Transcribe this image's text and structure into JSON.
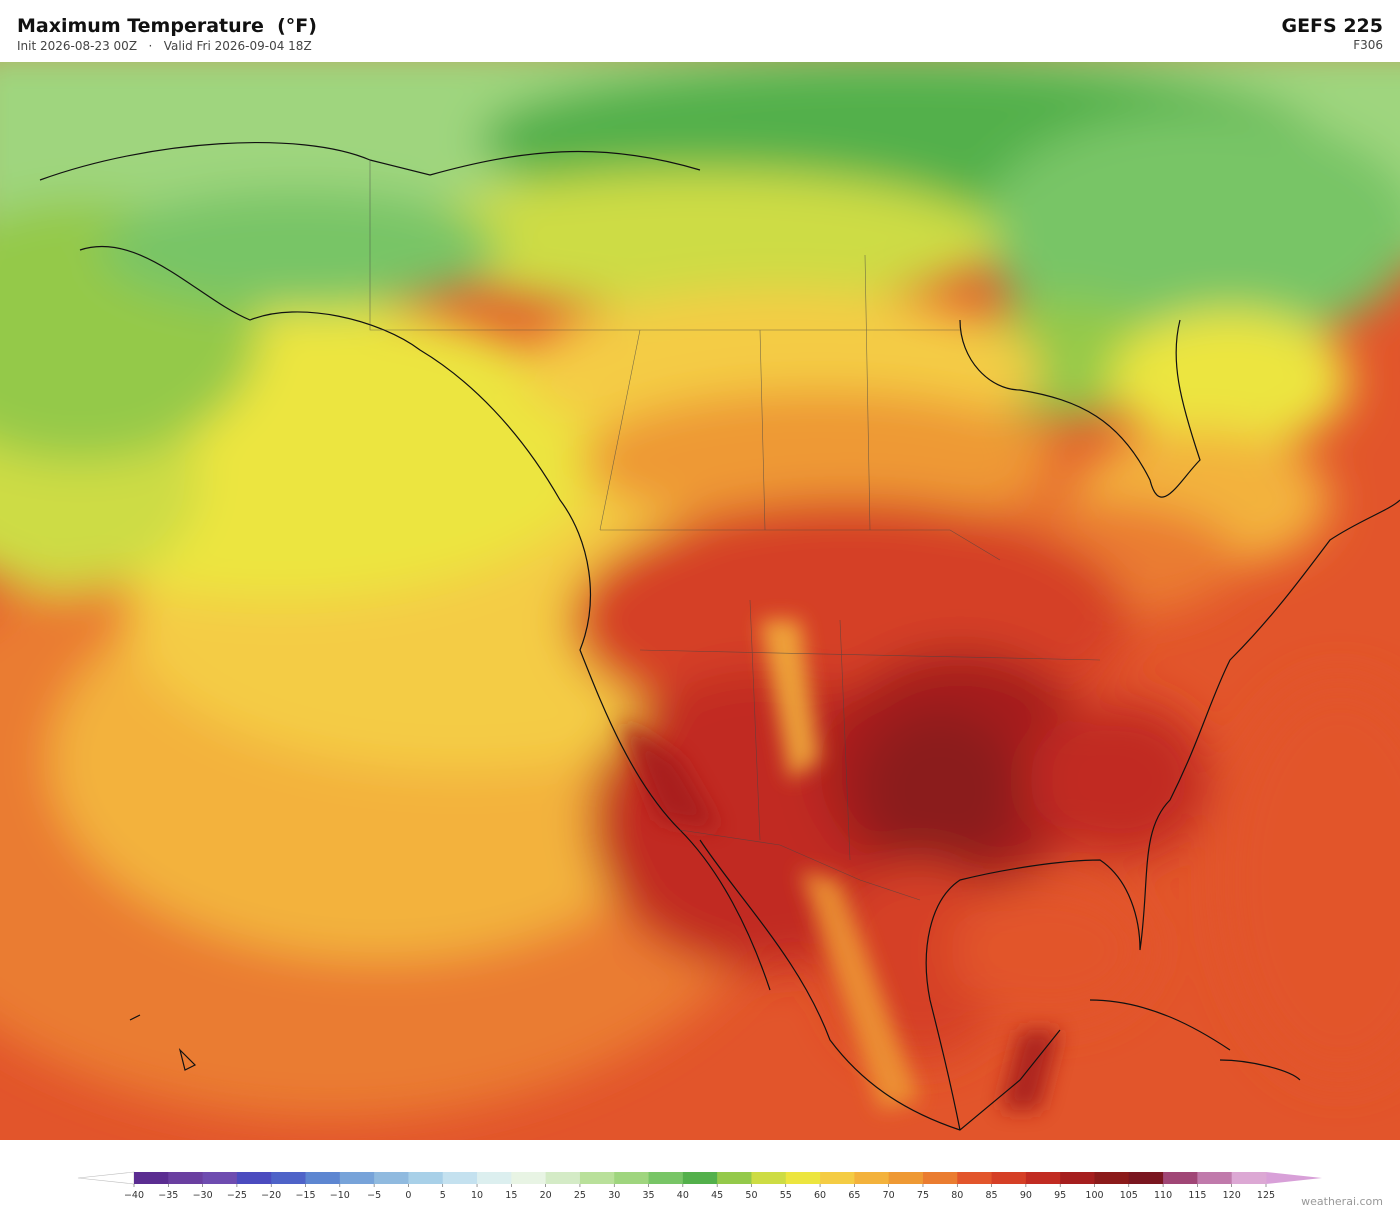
{
  "header": {
    "title": "Maximum Temperature  (°F)",
    "init": "Init 2026-08-23 00Z",
    "separator": "·",
    "valid": "Valid Fri 2026-09-04 18Z",
    "model": "GEFS  225",
    "forecast_hour": "F306"
  },
  "colorbar": {
    "ticks": [
      {
        "value": -40,
        "label": "−40"
      },
      {
        "value": -35,
        "label": "−35"
      },
      {
        "value": -30,
        "label": "−30"
      },
      {
        "value": -25,
        "label": "−25"
      },
      {
        "value": -20,
        "label": "−20"
      },
      {
        "value": -15,
        "label": "−15"
      },
      {
        "value": -10,
        "label": "−10"
      },
      {
        "value": -5,
        "label": "−5"
      },
      0,
      5,
      10,
      15,
      20,
      25,
      30,
      35,
      40,
      45,
      50,
      55,
      60,
      65,
      70,
      75,
      80,
      85,
      90,
      95,
      100,
      105,
      110,
      115,
      120,
      125
    ],
    "colors": [
      "#5b2d91",
      "#6a3fa0",
      "#6e4cb0",
      "#4b4bbf",
      "#4e63c8",
      "#5d86d1",
      "#77a3d9",
      "#90badf",
      "#a8d0e8",
      "#c4e1ef",
      "#dcefef",
      "#e8f4e4",
      "#d4ebc6",
      "#b9e09a",
      "#9fd57e",
      "#78c566",
      "#53b04b",
      "#94c94a",
      "#cddc44",
      "#ece53f",
      "#f4cc44",
      "#f3b23c",
      "#ee9934",
      "#ea7c30",
      "#e2552b",
      "#d53f26",
      "#c12b22",
      "#a51e1e",
      "#8b1a1a",
      "#7a1620",
      "#a04676",
      "#c07aab",
      "#dca8d4"
    ],
    "under_color": "#ffffff",
    "over_color": "#d8a0d8"
  },
  "watermark": "weatherai.com"
}
